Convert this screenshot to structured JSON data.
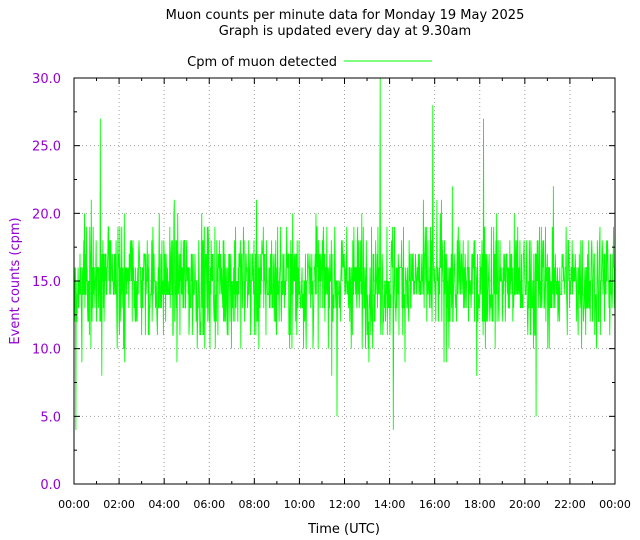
{
  "chart_data": {
    "type": "line",
    "title": "Muon counts per minute data for Monday 19 May 2025",
    "subtitle": "Graph is updated every day at 9.30am",
    "xlabel": "Time (UTC)",
    "ylabel": "Event counts (cpm)",
    "xlim": [
      "00:00",
      "24:00"
    ],
    "ylim": [
      0,
      30
    ],
    "x_tick_labels": [
      "00:00",
      "02:00",
      "04:00",
      "06:00",
      "08:00",
      "10:00",
      "12:00",
      "14:00",
      "16:00",
      "18:00",
      "20:00",
      "22:00",
      "00:00"
    ],
    "y_tick_labels": [
      "0.0",
      "5.0",
      "10.0",
      "15.0",
      "20.0",
      "25.0",
      "30.0"
    ],
    "y_ticks": [
      0,
      5,
      10,
      15,
      20,
      25,
      30
    ],
    "grid": true,
    "legend_position": "top-center",
    "series": [
      {
        "name": "Cpm of muon detected",
        "color": "#00ff00",
        "interval_minutes": 1,
        "approx_mean": 15,
        "approx_min": 4,
        "approx_max": 30,
        "notable_points": [
          {
            "x": "00:05",
            "y": 4
          },
          {
            "x": "01:10",
            "y": 27
          },
          {
            "x": "11:40",
            "y": 5
          },
          {
            "x": "13:35",
            "y": 30
          },
          {
            "x": "14:10",
            "y": 4
          },
          {
            "x": "15:55",
            "y": 28
          },
          {
            "x": "18:10",
            "y": 27
          },
          {
            "x": "20:30",
            "y": 5
          }
        ]
      }
    ]
  },
  "colors": {
    "axis_text": "#9400d3",
    "line": "#00ff00",
    "grid": "#a0a0a0"
  }
}
